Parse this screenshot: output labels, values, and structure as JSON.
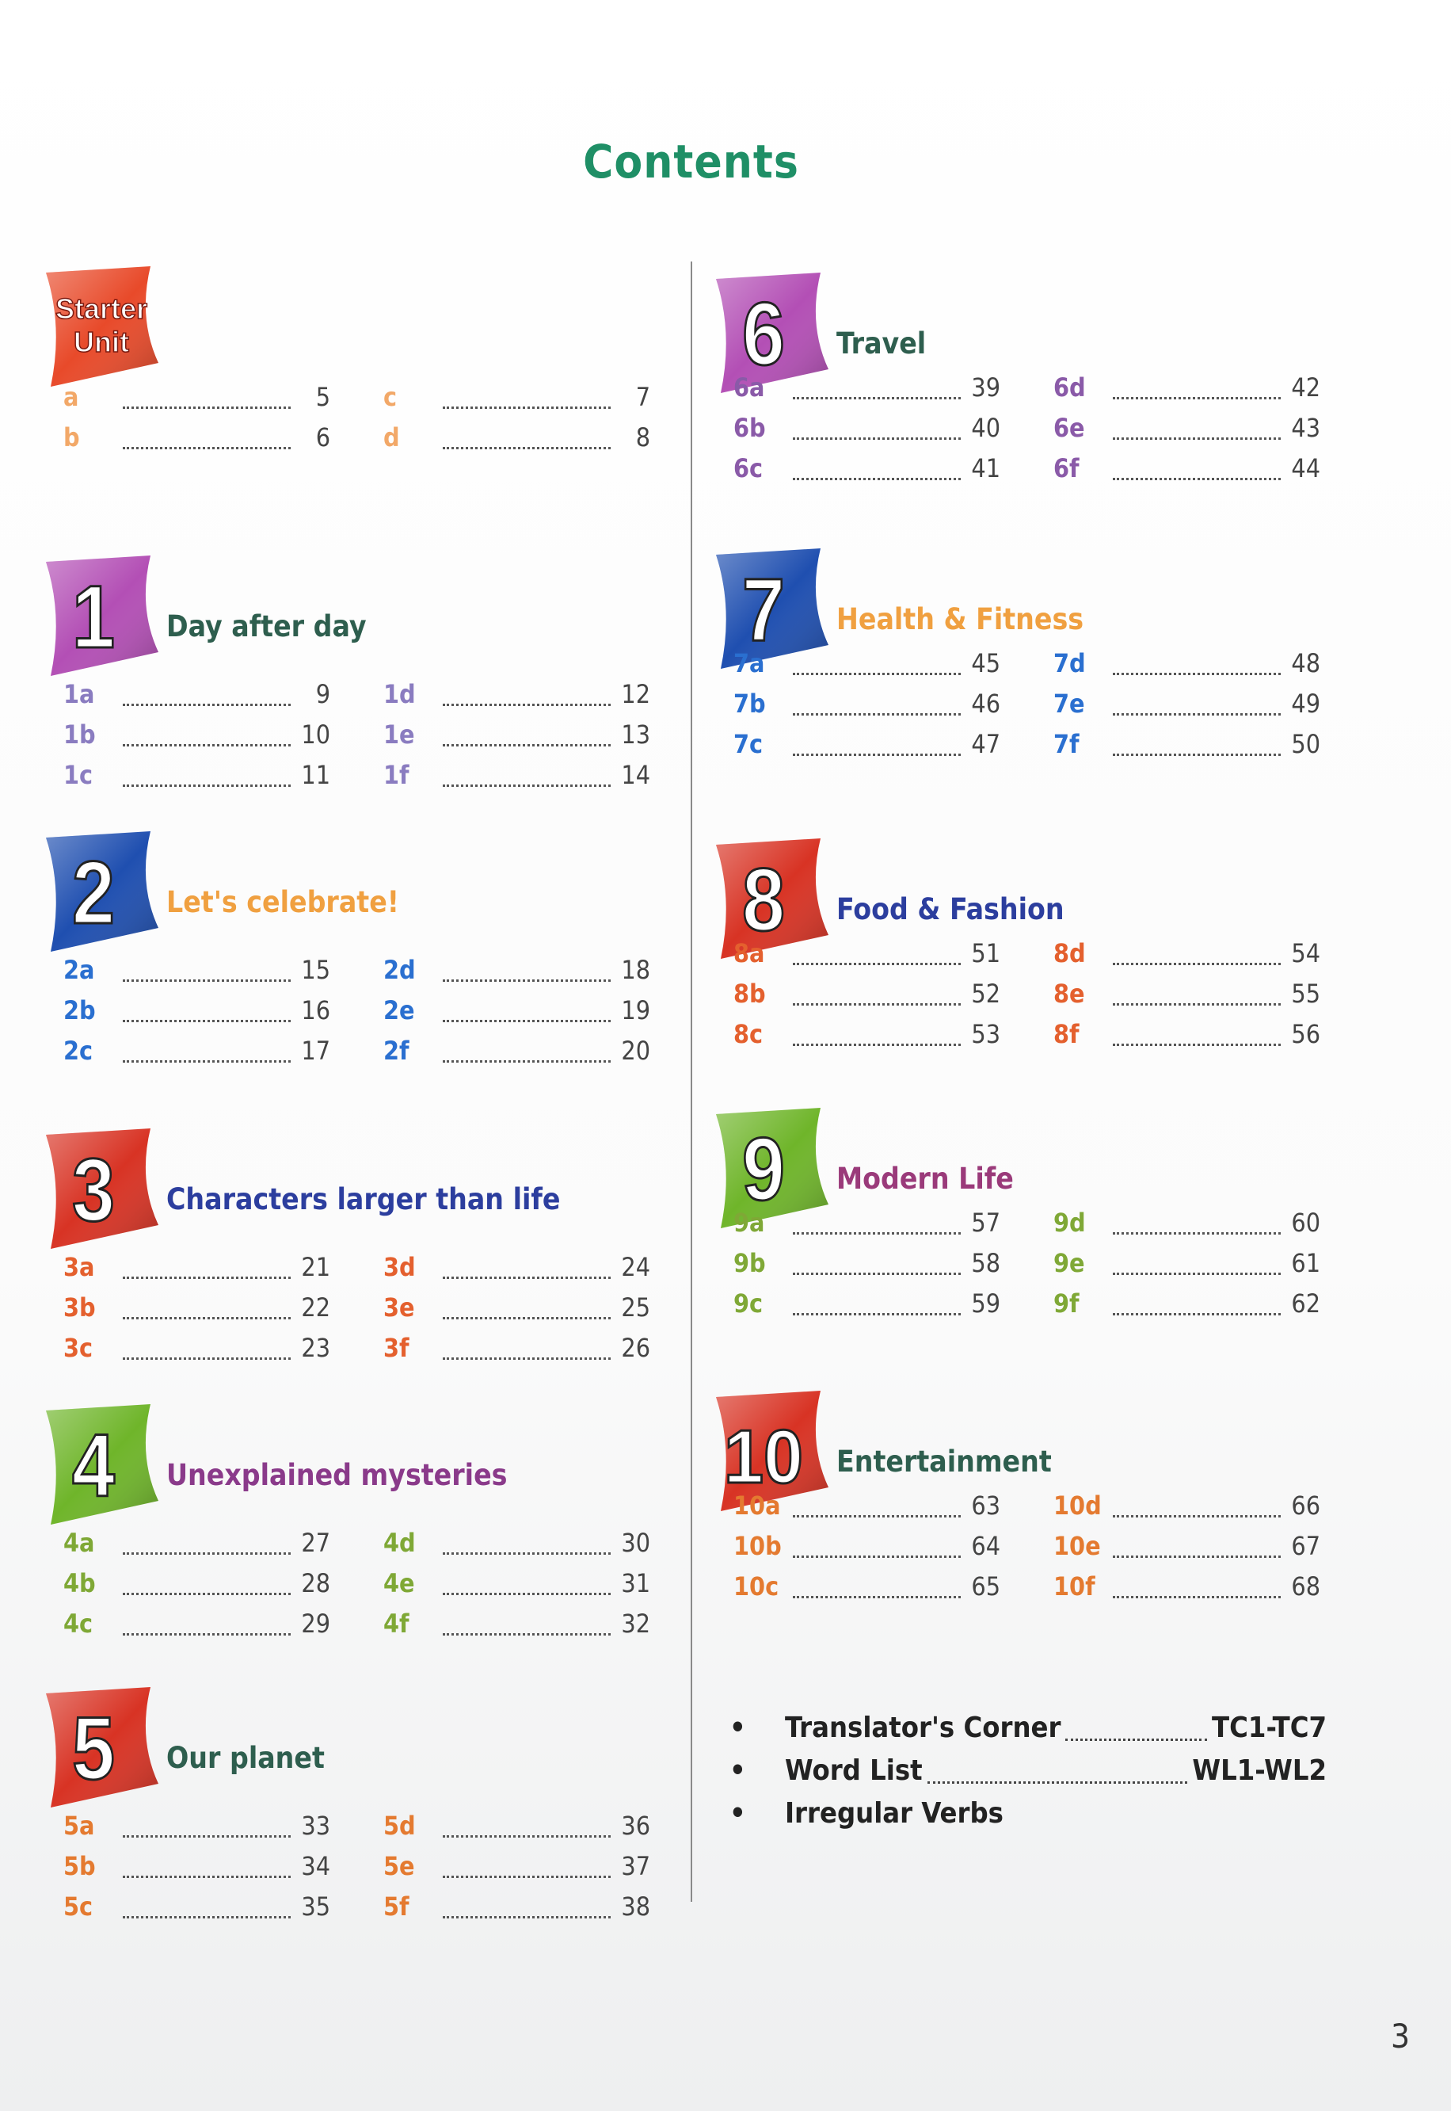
{
  "title": "Contents",
  "page_number": "3",
  "units": [
    {
      "badge": "Starter Unit",
      "badge_color": "#e84a2a",
      "title": "",
      "title_color": "#2e5e4e",
      "code_color": "#f2a868",
      "entries": [
        [
          "a",
          "5"
        ],
        [
          "b",
          "6"
        ],
        [
          "c",
          "7"
        ],
        [
          "d",
          "8"
        ]
      ]
    },
    {
      "badge": "1",
      "badge_color": "#b34fb5",
      "title": "Day after day",
      "title_color": "#2e5e4e",
      "code_color": "#8a7cc0",
      "entries": [
        [
          "1a",
          "9"
        ],
        [
          "1b",
          "10"
        ],
        [
          "1c",
          "11"
        ],
        [
          "1d",
          "12"
        ],
        [
          "1e",
          "13"
        ],
        [
          "1f",
          "14"
        ]
      ]
    },
    {
      "badge": "2",
      "badge_color": "#1f4fb0",
      "title": "Let's celebrate!",
      "title_color": "#f0a040",
      "code_color": "#2a6fd0",
      "entries": [
        [
          "2a",
          "15"
        ],
        [
          "2b",
          "16"
        ],
        [
          "2c",
          "17"
        ],
        [
          "2d",
          "18"
        ],
        [
          "2e",
          "19"
        ],
        [
          "2f",
          "20"
        ]
      ]
    },
    {
      "badge": "3",
      "badge_color": "#d83324",
      "title": "Characters larger than life",
      "title_color": "#2c3e9e",
      "code_color": "#e4602e",
      "entries": [
        [
          "3a",
          "21"
        ],
        [
          "3b",
          "22"
        ],
        [
          "3c",
          "23"
        ],
        [
          "3d",
          "24"
        ],
        [
          "3e",
          "25"
        ],
        [
          "3f",
          "26"
        ]
      ]
    },
    {
      "badge": "4",
      "badge_color": "#6fb52a",
      "title": "Unexplained mysteries",
      "title_color": "#8a3a8a",
      "code_color": "#7fa836",
      "entries": [
        [
          "4a",
          "27"
        ],
        [
          "4b",
          "28"
        ],
        [
          "4c",
          "29"
        ],
        [
          "4d",
          "30"
        ],
        [
          "4e",
          "31"
        ],
        [
          "4f",
          "32"
        ]
      ]
    },
    {
      "badge": "5",
      "badge_color": "#d83324",
      "title": "Our planet",
      "title_color": "#2e5e4e",
      "code_color": "#e47a30",
      "entries": [
        [
          "5a",
          "33"
        ],
        [
          "5b",
          "34"
        ],
        [
          "5c",
          "35"
        ],
        [
          "5d",
          "36"
        ],
        [
          "5e",
          "37"
        ],
        [
          "5f",
          "38"
        ]
      ]
    },
    {
      "badge": "6",
      "badge_color": "#b34fb5",
      "title": "Travel",
      "title_color": "#2e5e4e",
      "code_color": "#8a5aa8",
      "entries": [
        [
          "6a",
          "39"
        ],
        [
          "6b",
          "40"
        ],
        [
          "6c",
          "41"
        ],
        [
          "6d",
          "42"
        ],
        [
          "6e",
          "43"
        ],
        [
          "6f",
          "44"
        ]
      ]
    },
    {
      "badge": "7",
      "badge_color": "#1f4fb0",
      "title": "Health & Fitness",
      "title_color": "#f0a040",
      "code_color": "#2a6fd0",
      "entries": [
        [
          "7a",
          "45"
        ],
        [
          "7b",
          "46"
        ],
        [
          "7c",
          "47"
        ],
        [
          "7d",
          "48"
        ],
        [
          "7e",
          "49"
        ],
        [
          "7f",
          "50"
        ]
      ]
    },
    {
      "badge": "8",
      "badge_color": "#d83324",
      "title": "Food & Fashion",
      "title_color": "#2c3e9e",
      "code_color": "#e4602e",
      "entries": [
        [
          "8a",
          "51"
        ],
        [
          "8b",
          "52"
        ],
        [
          "8c",
          "53"
        ],
        [
          "8d",
          "54"
        ],
        [
          "8e",
          "55"
        ],
        [
          "8f",
          "56"
        ]
      ]
    },
    {
      "badge": "9",
      "badge_color": "#6fb52a",
      "title": "Modern Life",
      "title_color": "#9a3a7a",
      "code_color": "#7fa836",
      "entries": [
        [
          "9a",
          "57"
        ],
        [
          "9b",
          "58"
        ],
        [
          "9c",
          "59"
        ],
        [
          "9d",
          "60"
        ],
        [
          "9e",
          "61"
        ],
        [
          "9f",
          "62"
        ]
      ]
    },
    {
      "badge": "10",
      "badge_color": "#d83324",
      "title": "Entertainment",
      "title_color": "#2e5e4e",
      "code_color": "#e47a30",
      "entries": [
        [
          "10a",
          "63"
        ],
        [
          "10b",
          "64"
        ],
        [
          "10c",
          "65"
        ],
        [
          "10d",
          "66"
        ],
        [
          "10e",
          "67"
        ],
        [
          "10f",
          "68"
        ]
      ]
    }
  ],
  "extras": [
    {
      "label": "Translator's Corner",
      "pages": "TC1-TC7"
    },
    {
      "label": "Word List",
      "pages": "WL1-WL2"
    },
    {
      "label": "Irregular Verbs",
      "pages": ""
    }
  ]
}
